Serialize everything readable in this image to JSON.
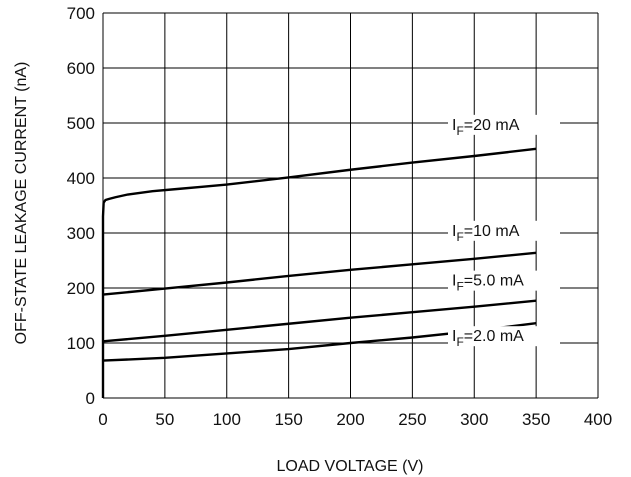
{
  "chart_data": {
    "type": "line",
    "xlabel": "LOAD VOLTAGE (V)",
    "ylabel": "OFF-STATE LEAKAGE CURRENT (nA)",
    "xlim": [
      0,
      400
    ],
    "ylim": [
      0,
      700
    ],
    "x_ticks": [
      0,
      50,
      100,
      150,
      200,
      250,
      300,
      350,
      400
    ],
    "y_ticks": [
      0,
      100,
      200,
      300,
      400,
      500,
      600,
      700
    ],
    "grid": true,
    "series": [
      {
        "name": "IF=20 mA",
        "label": {
          "main": "I",
          "sub": "F",
          "rest": "=20 mA"
        },
        "x": [
          0,
          0,
          0.5,
          2,
          5,
          10,
          20,
          40,
          60,
          80,
          100,
          150,
          200,
          250,
          300,
          350
        ],
        "y": [
          0,
          330,
          355,
          360,
          362,
          365,
          370,
          376,
          380,
          384,
          388,
          401,
          415,
          428,
          440,
          453
        ]
      },
      {
        "name": "IF=10 mA",
        "label": {
          "main": "I",
          "sub": "F",
          "rest": "=10 mA"
        },
        "x": [
          0,
          50,
          100,
          150,
          200,
          250,
          300,
          350
        ],
        "y": [
          188,
          199,
          210,
          222,
          233,
          243,
          253,
          264
        ]
      },
      {
        "name": "IF=5.0 mA",
        "label": {
          "main": "I",
          "sub": "F",
          "rest": "=5.0 mA"
        },
        "x": [
          0,
          50,
          100,
          150,
          200,
          250,
          300,
          350
        ],
        "y": [
          103,
          113,
          124,
          135,
          146,
          156,
          166,
          177
        ]
      },
      {
        "name": "IF=2.0 mA",
        "label": {
          "main": "I",
          "sub": "F",
          "rest": "=2.0 mA"
        },
        "x": [
          0,
          50,
          100,
          150,
          200,
          250,
          300,
          350
        ],
        "y": [
          68,
          73,
          81,
          89,
          100,
          110,
          122,
          136
        ]
      }
    ]
  }
}
